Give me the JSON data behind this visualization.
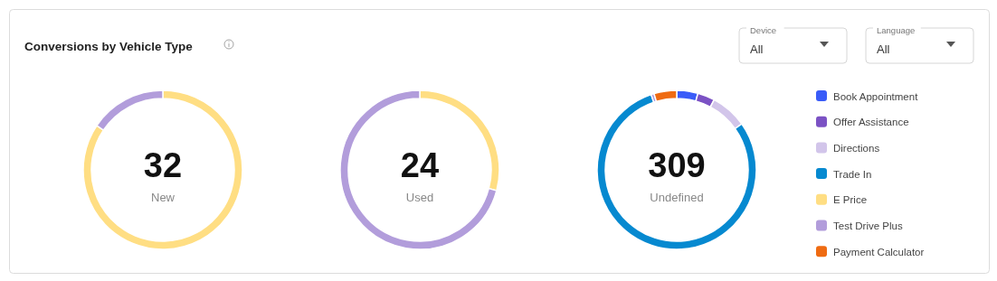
{
  "chart_data": [
    {
      "type": "other",
      "title": "Conversions by Vehicle Type",
      "annotations": [
        "Device",
        "All",
        "Language",
        "All"
      ]
    },
    {
      "type": "donut",
      "title": "New",
      "annotations": [
        "32"
      ],
      "categories": [
        null,
        null
      ],
      "values": [
        84.4,
        15.6
      ],
      "colors": [
        "#ffde83",
        "#b29ddb"
      ]
    },
    {
      "type": "donut",
      "title": "Used",
      "annotations": [
        "24"
      ],
      "categories": [
        null,
        null
      ],
      "values": [
        29.2,
        70.8
      ],
      "colors": [
        "#ffde83",
        "#b29ddb"
      ]
    },
    {
      "type": "donut",
      "title": "Undefined",
      "annotations": [
        "309"
      ],
      "categories": [
        "Book Appointment",
        "Offer Assistance",
        "Directions",
        "Trade In",
        "E Price",
        "Test Drive Plus",
        "Payment Calculator"
      ],
      "values": [
        4.3,
        3.5,
        7.4,
        79.6,
        0,
        0.6,
        4.6
      ],
      "colors": [
        "#3a5cf8",
        "#7b52c4",
        "#d2c5ea",
        "#0689d0",
        "#ffde83",
        "#b29ddb",
        "#ef6b12"
      ],
      "legend": "right"
    }
  ]
}
